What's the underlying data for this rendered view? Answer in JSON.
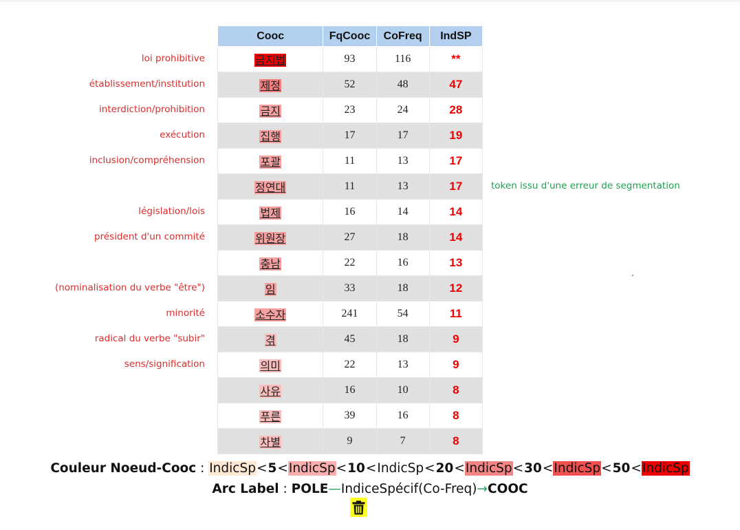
{
  "table": {
    "headers": [
      "Cooc",
      "FqCooc",
      "CoFreq",
      "IndSP"
    ],
    "rows": [
      {
        "cooc": "금지법",
        "fq": "93",
        "cofreq": "116",
        "ind": "**",
        "color": "#ee0000",
        "gloss": "loi prohibitive"
      },
      {
        "cooc": "제정",
        "fq": "52",
        "cofreq": "48",
        "ind": "47",
        "color": "#f37f7f",
        "gloss": "établissement/institution"
      },
      {
        "cooc": "금지",
        "fq": "23",
        "cofreq": "24",
        "ind": "28",
        "color": "#f7a0a0",
        "gloss": "interdiction/prohibition"
      },
      {
        "cooc": "집행",
        "fq": "17",
        "cofreq": "17",
        "ind": "19",
        "color": "#f7a0a0",
        "gloss": "exécution"
      },
      {
        "cooc": "포괄",
        "fq": "11",
        "cofreq": "13",
        "ind": "17",
        "color": "#f7a0a0",
        "gloss": "inclusion/compréhension"
      },
      {
        "cooc": "정연대",
        "fq": "11",
        "cofreq": "13",
        "ind": "17",
        "color": "#f7a0a0",
        "gloss": ""
      },
      {
        "cooc": "법제",
        "fq": "16",
        "cofreq": "14",
        "ind": "14",
        "color": "#f7a0a0",
        "gloss": "législation/lois"
      },
      {
        "cooc": "위원장",
        "fq": "27",
        "cofreq": "18",
        "ind": "14",
        "color": "#f7a0a0",
        "gloss": "président d'un commité"
      },
      {
        "cooc": "충남",
        "fq": "22",
        "cofreq": "16",
        "ind": "13",
        "color": "#f7a0a0",
        "gloss": ""
      },
      {
        "cooc": "임",
        "fq": "33",
        "cofreq": "18",
        "ind": "12",
        "color": "#f7a0a0",
        "gloss": "(nominalisation du verbe \"être\")"
      },
      {
        "cooc": "소수자",
        "fq": "241",
        "cofreq": "54",
        "ind": "11",
        "color": "#f7a0a0",
        "gloss": "minorité"
      },
      {
        "cooc": "겪",
        "fq": "45",
        "cofreq": "18",
        "ind": "9",
        "color": "#fbbcbc",
        "gloss": "radical du verbe \"subir\""
      },
      {
        "cooc": "의미",
        "fq": "22",
        "cofreq": "13",
        "ind": "9",
        "color": "#fbbcbc",
        "gloss": "sens/signification"
      },
      {
        "cooc": "사유",
        "fq": "16",
        "cofreq": "10",
        "ind": "8",
        "color": "#fbbcbc",
        "gloss": ""
      },
      {
        "cooc": "푸른",
        "fq": "39",
        "cofreq": "16",
        "ind": "8",
        "color": "#fbbcbc",
        "gloss": ""
      },
      {
        "cooc": "차별",
        "fq": "9",
        "cofreq": "7",
        "ind": "8",
        "color": "#fbbcbc",
        "gloss": ""
      }
    ]
  },
  "side_note": "token issu d'une erreur de segmentation",
  "stray_dot": ".",
  "legend": {
    "color_label": "Couleur Noeud-Cooc",
    "sep": ":",
    "items": [
      {
        "text": "IndicSp",
        "color": "#fde9d3"
      },
      {
        "text": "<",
        "color": ""
      },
      {
        "text": "5",
        "color": "",
        "bold": true
      },
      {
        "text": "<",
        "color": ""
      },
      {
        "text": "IndicSp",
        "color": "#fbaeae"
      },
      {
        "text": "<",
        "color": ""
      },
      {
        "text": "10",
        "color": "",
        "bold": true
      },
      {
        "text": "<",
        "color": ""
      },
      {
        "text": "IndicSp",
        "color": ""
      },
      {
        "text": "<",
        "color": ""
      },
      {
        "text": "20",
        "color": "",
        "bold": true
      },
      {
        "text": "<",
        "color": ""
      },
      {
        "text": "IndicSp",
        "color": "#f58585"
      },
      {
        "text": "<",
        "color": ""
      },
      {
        "text": "30",
        "color": "",
        "bold": true
      },
      {
        "text": "<",
        "color": ""
      },
      {
        "text": "IndicSp",
        "color": "#f05050"
      },
      {
        "text": "<",
        "color": ""
      },
      {
        "text": "50",
        "color": "",
        "bold": true
      },
      {
        "text": "<",
        "color": ""
      },
      {
        "text": "IndicSp",
        "color": "#ee0000"
      }
    ],
    "arc_label": "Arc Label",
    "arc_pole": "POLE",
    "arc_dash": "—",
    "arc_middle": "IndiceSpécif(Co-Freq)",
    "arc_arrow": "→",
    "arc_cooc": "COOC"
  },
  "icons": {
    "trash": "trash-icon"
  },
  "colors": {
    "header": "#b3d0ee",
    "ind_text": "#ee0000",
    "gloss": "#dd2b2b",
    "note": "#20a050",
    "trash_bg": "#ffff22"
  }
}
